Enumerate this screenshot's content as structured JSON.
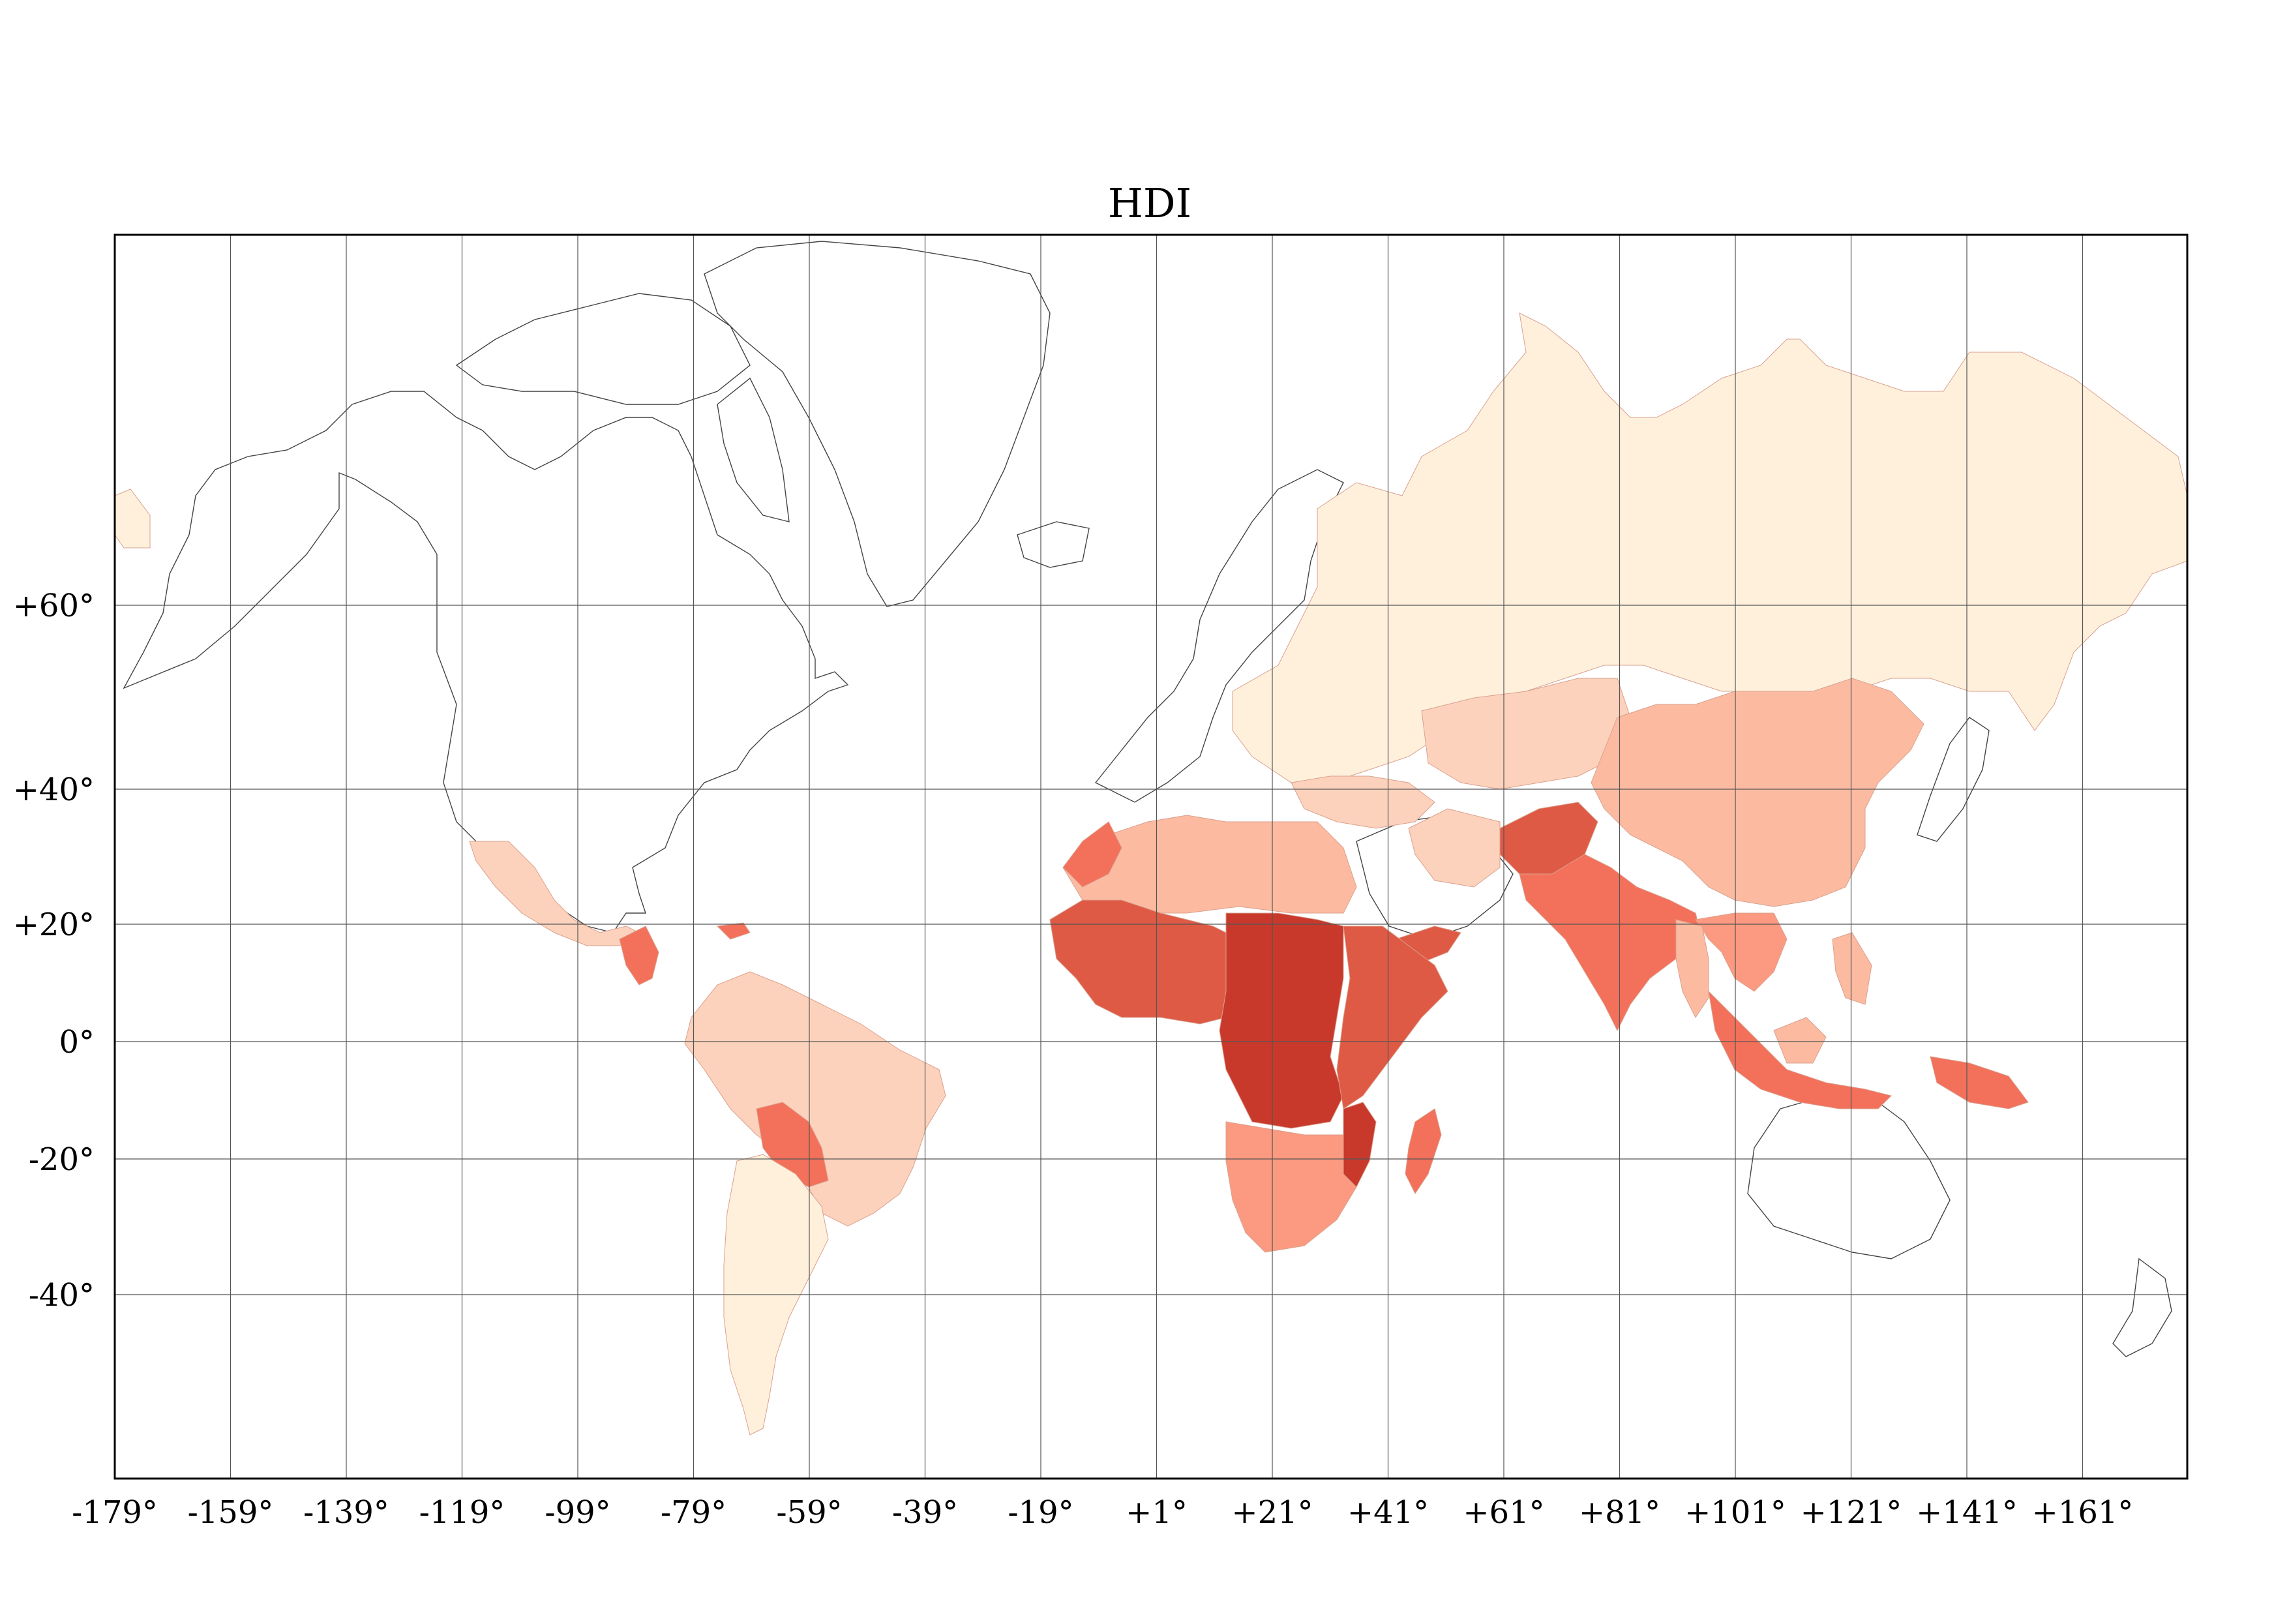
{
  "title": "HDI",
  "colors": {
    "hdi_lightest": "#fff0dc",
    "hdi_light": "#fdd2bc",
    "hdi_medium_light": "#fcbba1",
    "hdi_medium": "#fb9a80",
    "hdi_medium_dark": "#f3705a",
    "hdi_dark": "#de5a44",
    "hdi_darkest": "#c8392c",
    "no_data": "#ffffff"
  },
  "longitude_ticks": [
    "-179°",
    "-159°",
    "-139°",
    "-119°",
    "-99°",
    "-79°",
    "-59°",
    "-39°",
    "-19°",
    "+1°",
    "+21°",
    "+41°",
    "+61°",
    "+81°",
    "+101°",
    "+121°",
    "+141°",
    "+161°"
  ],
  "latitude_ticks": [
    "+60°",
    "+40°",
    "+20°",
    "0°",
    "-20°",
    "-40°"
  ],
  "regions": [
    {
      "name": "Russia & Northern Asia",
      "shade": "hdi_lightest"
    },
    {
      "name": "Southern South America",
      "shade": "hdi_lightest"
    },
    {
      "name": "China",
      "shade": "hdi_medium_light"
    },
    {
      "name": "Central Asia",
      "shade": "hdi_light"
    },
    {
      "name": "Mexico",
      "shade": "hdi_light"
    },
    {
      "name": "Brazil & Northern South America",
      "shade": "hdi_light"
    },
    {
      "name": "North Africa",
      "shade": "hdi_medium_light"
    },
    {
      "name": "India & Pakistan",
      "shade": "hdi_medium_dark"
    },
    {
      "name": "Southeast Asia",
      "shade": "hdi_medium"
    },
    {
      "name": "Indonesia & Papua",
      "shade": "hdi_medium_dark"
    },
    {
      "name": "West Africa",
      "shade": "hdi_dark"
    },
    {
      "name": "Central Africa",
      "shade": "hdi_darkest"
    },
    {
      "name": "East Africa",
      "shade": "hdi_dark"
    },
    {
      "name": "Southern Africa",
      "shade": "hdi_medium"
    },
    {
      "name": "Madagascar",
      "shade": "hdi_medium_dark"
    },
    {
      "name": "Bolivia & Paraguay",
      "shade": "hdi_medium_dark"
    },
    {
      "name": "Central America",
      "shade": "hdi_medium_dark"
    },
    {
      "name": "Afghanistan",
      "shade": "hdi_dark"
    },
    {
      "name": "Yemen",
      "shade": "hdi_dark"
    }
  ]
}
